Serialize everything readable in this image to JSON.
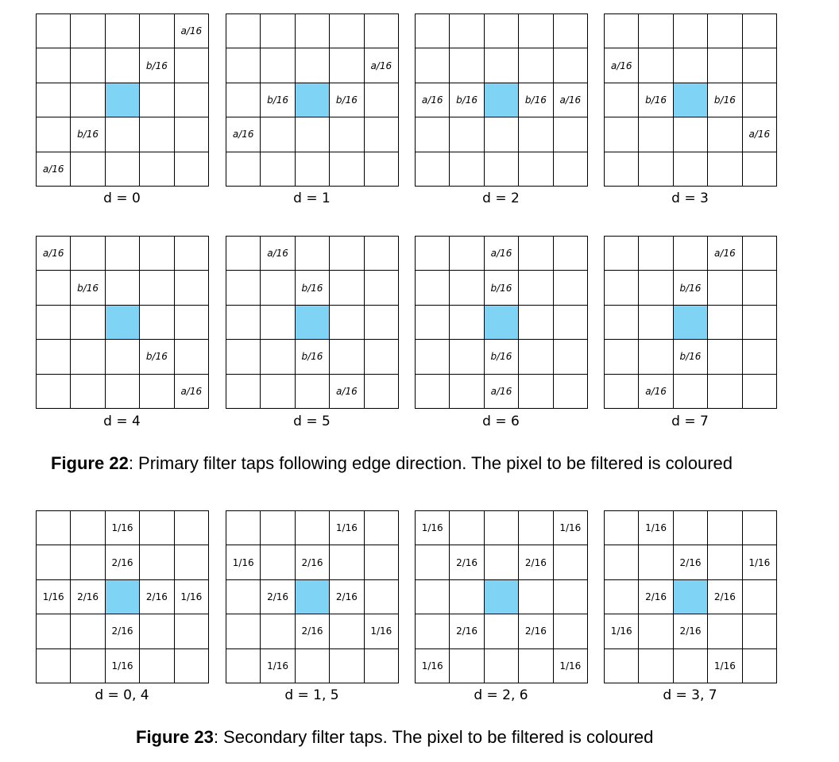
{
  "figure22": {
    "caption_label": "Figure 22",
    "caption_text": ": Primary filter taps following edge direction. The pixel to be filtered is coloured",
    "panels": [
      {
        "d": "d = 0",
        "cells": [
          [
            "",
            "",
            "",
            "",
            "a/16"
          ],
          [
            "",
            "",
            "",
            "b/16",
            ""
          ],
          [
            "",
            "",
            "*",
            "",
            ""
          ],
          [
            "",
            "b/16",
            "",
            "",
            ""
          ],
          [
            "a/16",
            "",
            "",
            "",
            ""
          ]
        ]
      },
      {
        "d": "d = 1",
        "cells": [
          [
            "",
            "",
            "",
            "",
            ""
          ],
          [
            "",
            "",
            "",
            "",
            "a/16"
          ],
          [
            "",
            "b/16",
            "*",
            "b/16",
            ""
          ],
          [
            "a/16",
            "",
            "",
            "",
            ""
          ],
          [
            "",
            "",
            "",
            "",
            ""
          ]
        ]
      },
      {
        "d": "d = 2",
        "cells": [
          [
            "",
            "",
            "",
            "",
            ""
          ],
          [
            "",
            "",
            "",
            "",
            ""
          ],
          [
            "a/16",
            "b/16",
            "*",
            "b/16",
            "a/16"
          ],
          [
            "",
            "",
            "",
            "",
            ""
          ],
          [
            "",
            "",
            "",
            "",
            ""
          ]
        ]
      },
      {
        "d": "d = 3",
        "cells": [
          [
            "",
            "",
            "",
            "",
            ""
          ],
          [
            "a/16",
            "",
            "",
            "",
            ""
          ],
          [
            "",
            "b/16",
            "*",
            "b/16",
            ""
          ],
          [
            "",
            "",
            "",
            "",
            "a/16"
          ],
          [
            "",
            "",
            "",
            "",
            ""
          ]
        ]
      },
      {
        "d": "d = 4",
        "cells": [
          [
            "a/16",
            "",
            "",
            "",
            ""
          ],
          [
            "",
            "b/16",
            "",
            "",
            ""
          ],
          [
            "",
            "",
            "*",
            "",
            ""
          ],
          [
            "",
            "",
            "",
            "b/16",
            ""
          ],
          [
            "",
            "",
            "",
            "",
            "a/16"
          ]
        ]
      },
      {
        "d": "d = 5",
        "cells": [
          [
            "",
            "a/16",
            "",
            "",
            ""
          ],
          [
            "",
            "",
            "b/16",
            "",
            ""
          ],
          [
            "",
            "",
            "*",
            "",
            ""
          ],
          [
            "",
            "",
            "b/16",
            "",
            ""
          ],
          [
            "",
            "",
            "",
            "a/16",
            ""
          ]
        ]
      },
      {
        "d": "d = 6",
        "cells": [
          [
            "",
            "",
            "a/16",
            "",
            ""
          ],
          [
            "",
            "",
            "b/16",
            "",
            ""
          ],
          [
            "",
            "",
            "*",
            "",
            ""
          ],
          [
            "",
            "",
            "b/16",
            "",
            ""
          ],
          [
            "",
            "",
            "a/16",
            "",
            ""
          ]
        ]
      },
      {
        "d": "d = 7",
        "cells": [
          [
            "",
            "",
            "",
            "a/16",
            ""
          ],
          [
            "",
            "",
            "b/16",
            "",
            ""
          ],
          [
            "",
            "",
            "*",
            "",
            ""
          ],
          [
            "",
            "",
            "b/16",
            "",
            ""
          ],
          [
            "",
            "a/16",
            "",
            "",
            ""
          ]
        ]
      }
    ]
  },
  "figure23": {
    "caption_label": "Figure 23",
    "caption_text": ": Secondary filter taps. The pixel to be filtered is coloured",
    "panels": [
      {
        "d": "d = 0, 4",
        "cells": [
          [
            "",
            "",
            "1/16",
            "",
            ""
          ],
          [
            "",
            "",
            "2/16",
            "",
            ""
          ],
          [
            "1/16",
            "2/16",
            "*",
            "2/16",
            "1/16"
          ],
          [
            "",
            "",
            "2/16",
            "",
            ""
          ],
          [
            "",
            "",
            "1/16",
            "",
            ""
          ]
        ]
      },
      {
        "d": "d = 1, 5",
        "cells": [
          [
            "",
            "",
            "",
            "1/16",
            ""
          ],
          [
            "1/16",
            "",
            "2/16",
            "",
            ""
          ],
          [
            "",
            "2/16",
            "*",
            "2/16",
            ""
          ],
          [
            "",
            "",
            "2/16",
            "",
            "1/16"
          ],
          [
            "",
            "1/16",
            "",
            "",
            ""
          ]
        ]
      },
      {
        "d": "d = 2, 6",
        "cells": [
          [
            "1/16",
            "",
            "",
            "",
            "1/16"
          ],
          [
            "",
            "2/16",
            "",
            "2/16",
            ""
          ],
          [
            "",
            "",
            "*",
            "",
            ""
          ],
          [
            "",
            "2/16",
            "",
            "2/16",
            ""
          ],
          [
            "1/16",
            "",
            "",
            "",
            "1/16"
          ]
        ]
      },
      {
        "d": "d = 3, 7",
        "cells": [
          [
            "",
            "1/16",
            "",
            "",
            ""
          ],
          [
            "",
            "",
            "2/16",
            "",
            "1/16"
          ],
          [
            "",
            "2/16",
            "*",
            "2/16",
            ""
          ],
          [
            "1/16",
            "",
            "2/16",
            "",
            ""
          ],
          [
            "",
            "",
            "",
            "1/16",
            ""
          ]
        ]
      }
    ]
  },
  "colors": {
    "filtered_pixel": "#7fd3f4",
    "grid_line": "#000000"
  }
}
